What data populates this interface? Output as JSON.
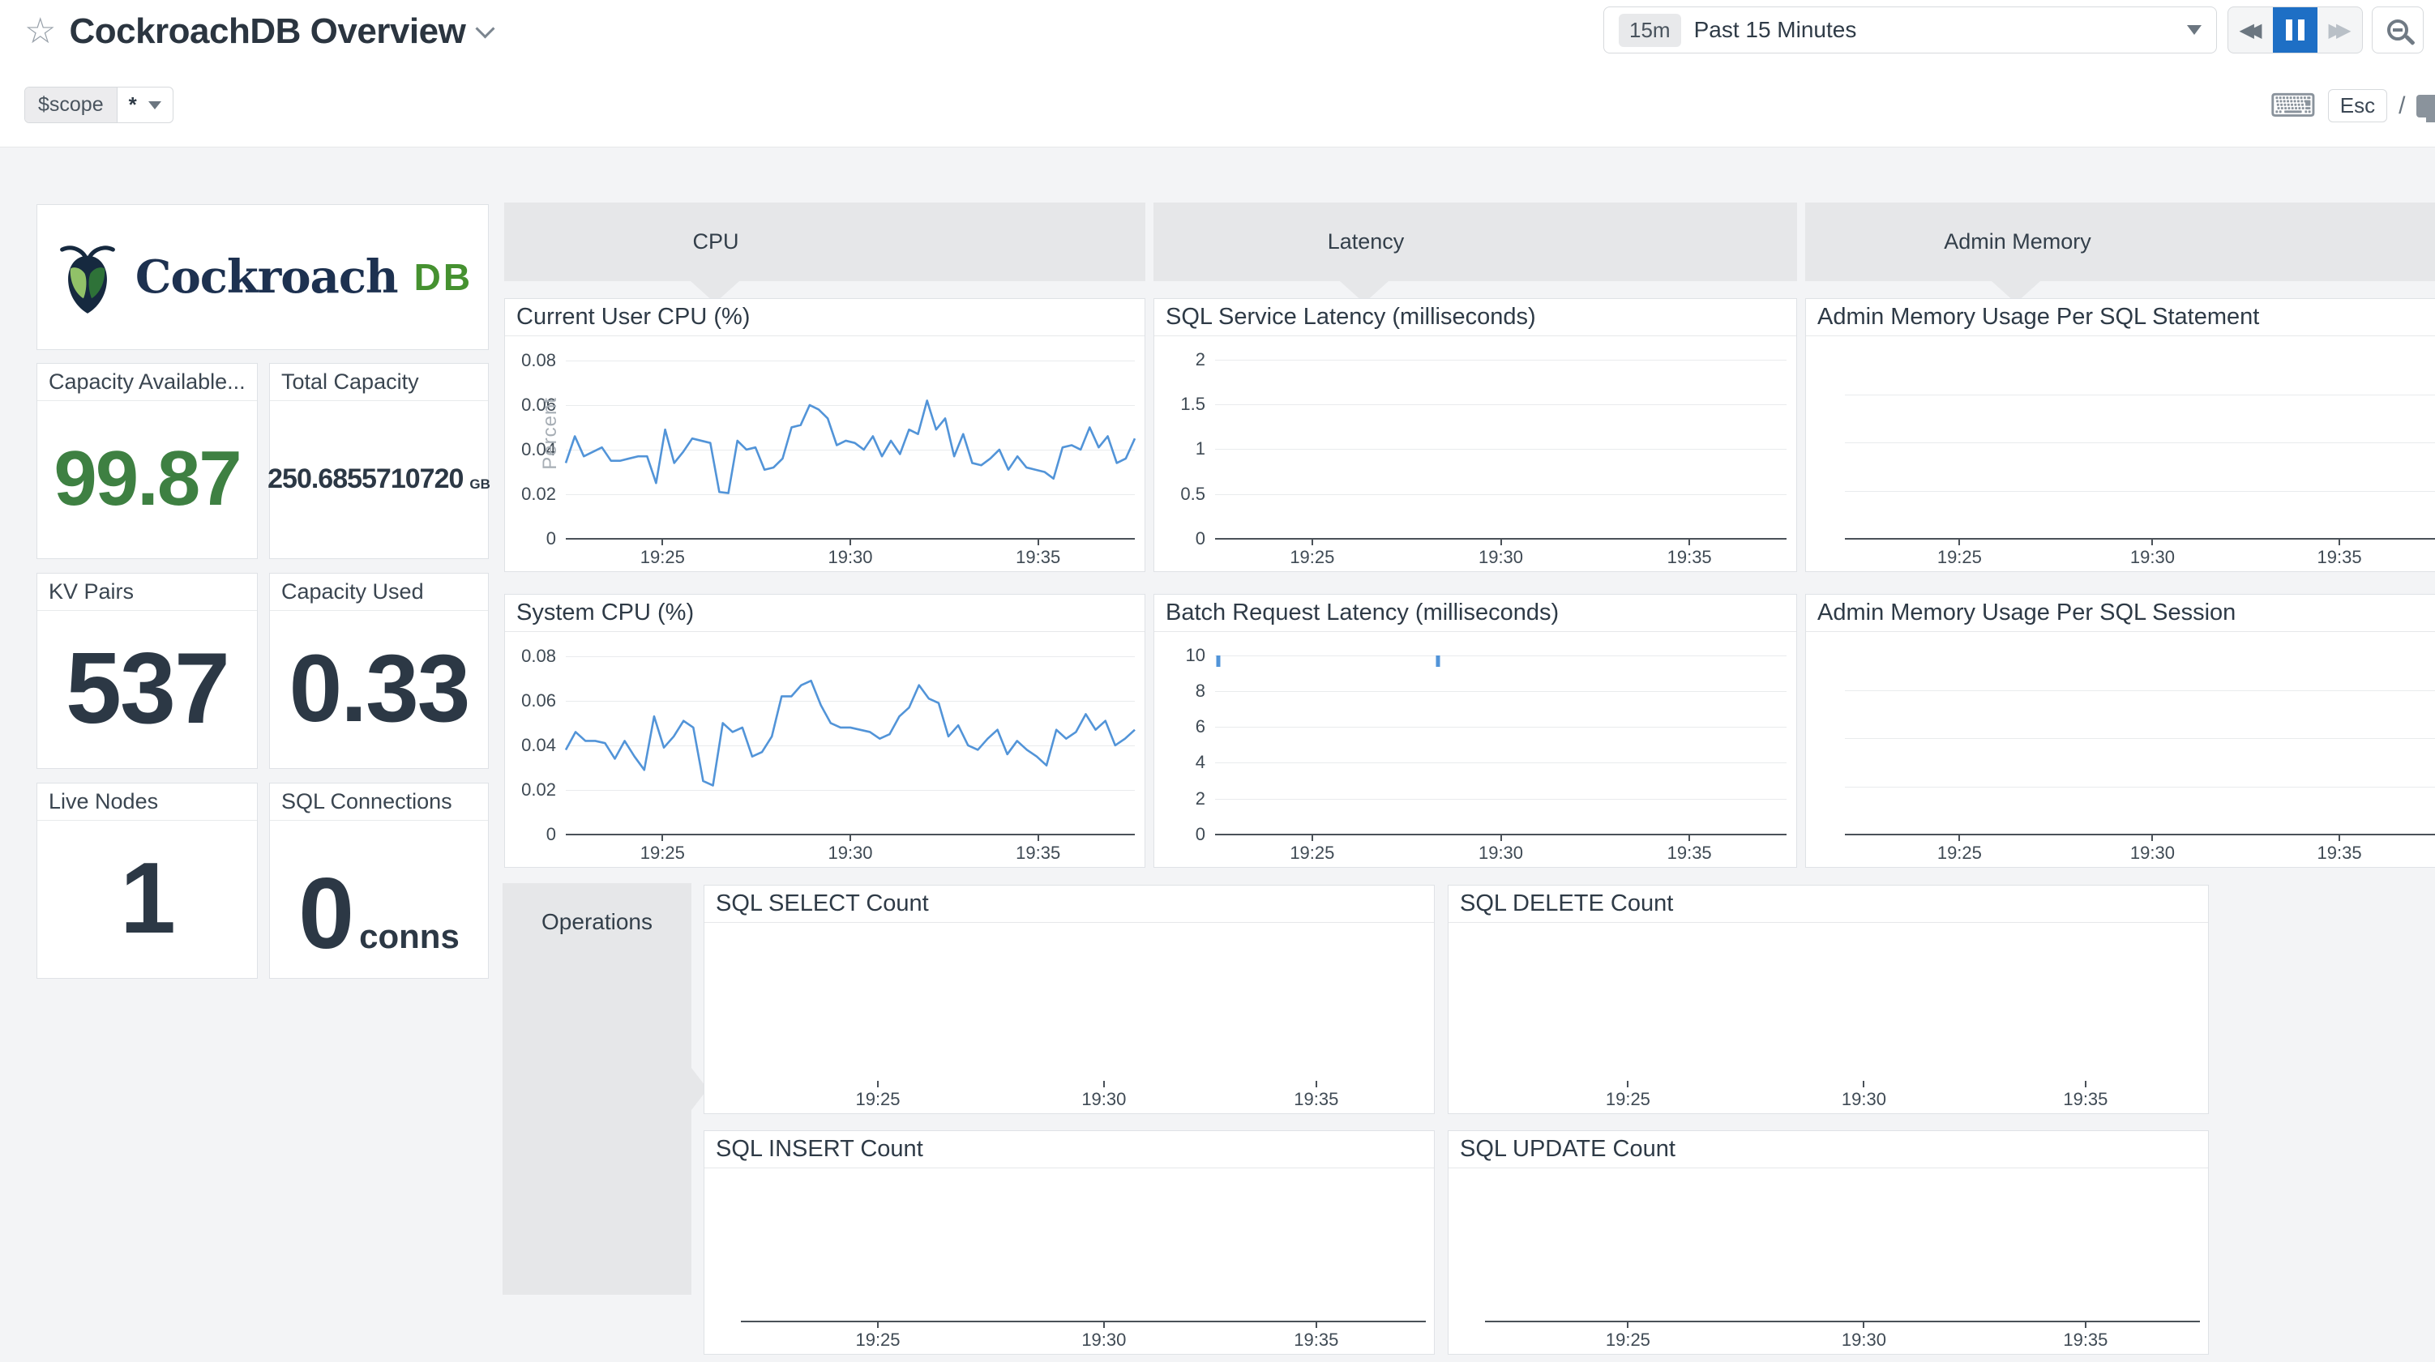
{
  "header": {
    "title": "CockroachDB Overview",
    "star_icon": "☆",
    "keyboard_icon": "⌨",
    "esc_label": "Esc",
    "slash": "/"
  },
  "timepicker": {
    "badge": "15m",
    "label": "Past 15 Minutes"
  },
  "controls": {
    "rewind_icon": "◀◀",
    "forward_icon": "▶▶"
  },
  "scope": {
    "name": "$scope",
    "value": "*"
  },
  "logo": {
    "word": "Cockroach",
    "db": "DB"
  },
  "groups": {
    "cpu": "CPU",
    "latency": "Latency",
    "admin_memory": "Admin Memory",
    "operations": "Operations"
  },
  "stats": {
    "capacity_available": {
      "label": "Capacity Available...",
      "value": "99.87",
      "unit": ""
    },
    "total_capacity": {
      "label": "Total Capacity",
      "value": "250.6855710720",
      "unit": "GB"
    },
    "kv_pairs": {
      "label": "KV Pairs",
      "value": "537",
      "unit": ""
    },
    "capacity_used": {
      "label": "Capacity Used",
      "value": "0.33",
      "unit": ""
    },
    "live_nodes": {
      "label": "Live Nodes",
      "value": "1",
      "unit": ""
    },
    "sql_connections": {
      "label": "SQL Connections",
      "value": "0",
      "unit": "conns"
    }
  },
  "colors": {
    "line_blue": "#5294d8",
    "pause_active_blue": "#1e6fc5",
    "stat_green": "#3e8042",
    "stat_dark": "#2c3845",
    "logo_navy": "#16293f",
    "logo_leaf_light": "#91c168",
    "logo_leaf_dark": "#2e7238",
    "group_header_gray": "#e6e7e9"
  },
  "chart_data": {
    "cpu_user": {
      "type": "line",
      "title": "Current User CPU (%)",
      "ylabel": "Percent",
      "ymax": 0.0865,
      "grid": true,
      "baseline": true,
      "yticks": [
        {
          "v": 0,
          "l": "0"
        },
        {
          "v": 0.02,
          "l": "0.02"
        },
        {
          "v": 0.04,
          "l": "0.04"
        },
        {
          "v": 0.06,
          "l": "0.06"
        },
        {
          "v": 0.08,
          "l": "0.08"
        }
      ],
      "xticks": [
        "19:25",
        "19:30",
        "19:35"
      ],
      "series": [
        0.034,
        0.046,
        0.037,
        0.039,
        0.041,
        0.035,
        0.035,
        0.036,
        0.037,
        0.037,
        0.025,
        0.049,
        0.034,
        0.039,
        0.045,
        0.044,
        0.043,
        0.021,
        0.0205,
        0.044,
        0.04,
        0.041,
        0.031,
        0.032,
        0.036,
        0.05,
        0.051,
        0.06,
        0.058,
        0.054,
        0.042,
        0.044,
        0.043,
        0.04,
        0.046,
        0.037,
        0.044,
        0.038,
        0.049,
        0.047,
        0.062,
        0.049,
        0.054,
        0.037,
        0.047,
        0.034,
        0.033,
        0.036,
        0.04,
        0.031,
        0.037,
        0.032,
        0.031,
        0.03,
        0.027,
        0.041,
        0.042,
        0.04,
        0.05,
        0.041,
        0.046,
        0.034,
        0.036,
        0.045
      ]
    },
    "cpu_system": {
      "type": "line",
      "title": "System CPU (%)",
      "ymax": 0.0865,
      "grid": true,
      "baseline": true,
      "yticks": [
        {
          "v": 0,
          "l": "0"
        },
        {
          "v": 0.02,
          "l": "0.02"
        },
        {
          "v": 0.04,
          "l": "0.04"
        },
        {
          "v": 0.06,
          "l": "0.06"
        },
        {
          "v": 0.08,
          "l": "0.08"
        }
      ],
      "xticks": [
        "19:25",
        "19:30",
        "19:35"
      ],
      "series": [
        0.038,
        0.046,
        0.042,
        0.042,
        0.041,
        0.034,
        0.042,
        0.035,
        0.029,
        0.053,
        0.039,
        0.044,
        0.051,
        0.048,
        0.024,
        0.022,
        0.05,
        0.046,
        0.048,
        0.035,
        0.037,
        0.044,
        0.062,
        0.062,
        0.067,
        0.069,
        0.058,
        0.05,
        0.048,
        0.048,
        0.047,
        0.046,
        0.043,
        0.045,
        0.053,
        0.057,
        0.067,
        0.061,
        0.059,
        0.044,
        0.049,
        0.04,
        0.038,
        0.043,
        0.047,
        0.036,
        0.042,
        0.038,
        0.035,
        0.031,
        0.047,
        0.043,
        0.046,
        0.054,
        0.047,
        0.051,
        0.04,
        0.043,
        0.047
      ]
    },
    "sql_service_latency": {
      "type": "line",
      "title": "SQL Service Latency (milliseconds)",
      "ymax": 2.15,
      "grid": true,
      "baseline": true,
      "yticks": [
        {
          "v": 0,
          "l": "0"
        },
        {
          "v": 0.5,
          "l": "0.5"
        },
        {
          "v": 1,
          "l": "1"
        },
        {
          "v": 1.5,
          "l": "1.5"
        },
        {
          "v": 2,
          "l": "2"
        }
      ],
      "xticks": [
        "19:25",
        "19:30",
        "19:35"
      ],
      "series": null
    },
    "batch_request_latency": {
      "type": "line",
      "title": "Batch Request Latency (milliseconds)",
      "ymax": 10.75,
      "grid": true,
      "baseline": true,
      "yticks": [
        {
          "v": 0,
          "l": "0"
        },
        {
          "v": 2,
          "l": "2"
        },
        {
          "v": 4,
          "l": "4"
        },
        {
          "v": 6,
          "l": "6"
        },
        {
          "v": 8,
          "l": "8"
        },
        {
          "v": 10,
          "l": "10"
        }
      ],
      "xticks": [
        "19:25",
        "19:30",
        "19:35"
      ],
      "series": null,
      "spikes": [
        {
          "frac": 0.006,
          "v": 10
        },
        {
          "frac": 0.39,
          "v": 10
        }
      ]
    },
    "admin_mem_statement": {
      "type": "line",
      "title": "Admin Memory Usage Per SQL Statement",
      "ymax": 4,
      "grid": true,
      "baseline": true,
      "yticks": [
        {
          "v": 1,
          "l": ""
        },
        {
          "v": 2,
          "l": ""
        },
        {
          "v": 3,
          "l": ""
        }
      ],
      "xticks": [
        "19:25",
        "19:30",
        "19:35"
      ],
      "series": null
    },
    "admin_mem_session": {
      "type": "line",
      "title": "Admin Memory Usage Per SQL Session",
      "ymax": 4,
      "grid": true,
      "baseline": true,
      "yticks": [
        {
          "v": 1,
          "l": ""
        },
        {
          "v": 2,
          "l": ""
        },
        {
          "v": 3,
          "l": ""
        }
      ],
      "xticks": [
        "19:25",
        "19:30",
        "19:35"
      ],
      "series": null
    },
    "sql_select_count": {
      "type": "line",
      "title": "SQL SELECT Count",
      "ymax": 4,
      "grid": false,
      "baseline": false,
      "yticks": [],
      "xticks": [
        "19:25",
        "19:30",
        "19:35"
      ],
      "series": null
    },
    "sql_delete_count": {
      "type": "line",
      "title": "SQL DELETE Count",
      "ymax": 4,
      "grid": false,
      "baseline": false,
      "yticks": [],
      "xticks": [
        "19:25",
        "19:30",
        "19:35"
      ],
      "series": null
    },
    "sql_insert_count": {
      "type": "line",
      "title": "SQL INSERT Count",
      "ymax": 4,
      "grid": false,
      "baseline": true,
      "yticks": [],
      "xticks": [
        "19:25",
        "19:30",
        "19:35"
      ],
      "series": null
    },
    "sql_update_count": {
      "type": "line",
      "title": "SQL UPDATE Count",
      "ymax": 4,
      "grid": false,
      "baseline": true,
      "yticks": [],
      "xticks": [
        "19:25",
        "19:30",
        "19:35"
      ],
      "series": null
    }
  }
}
